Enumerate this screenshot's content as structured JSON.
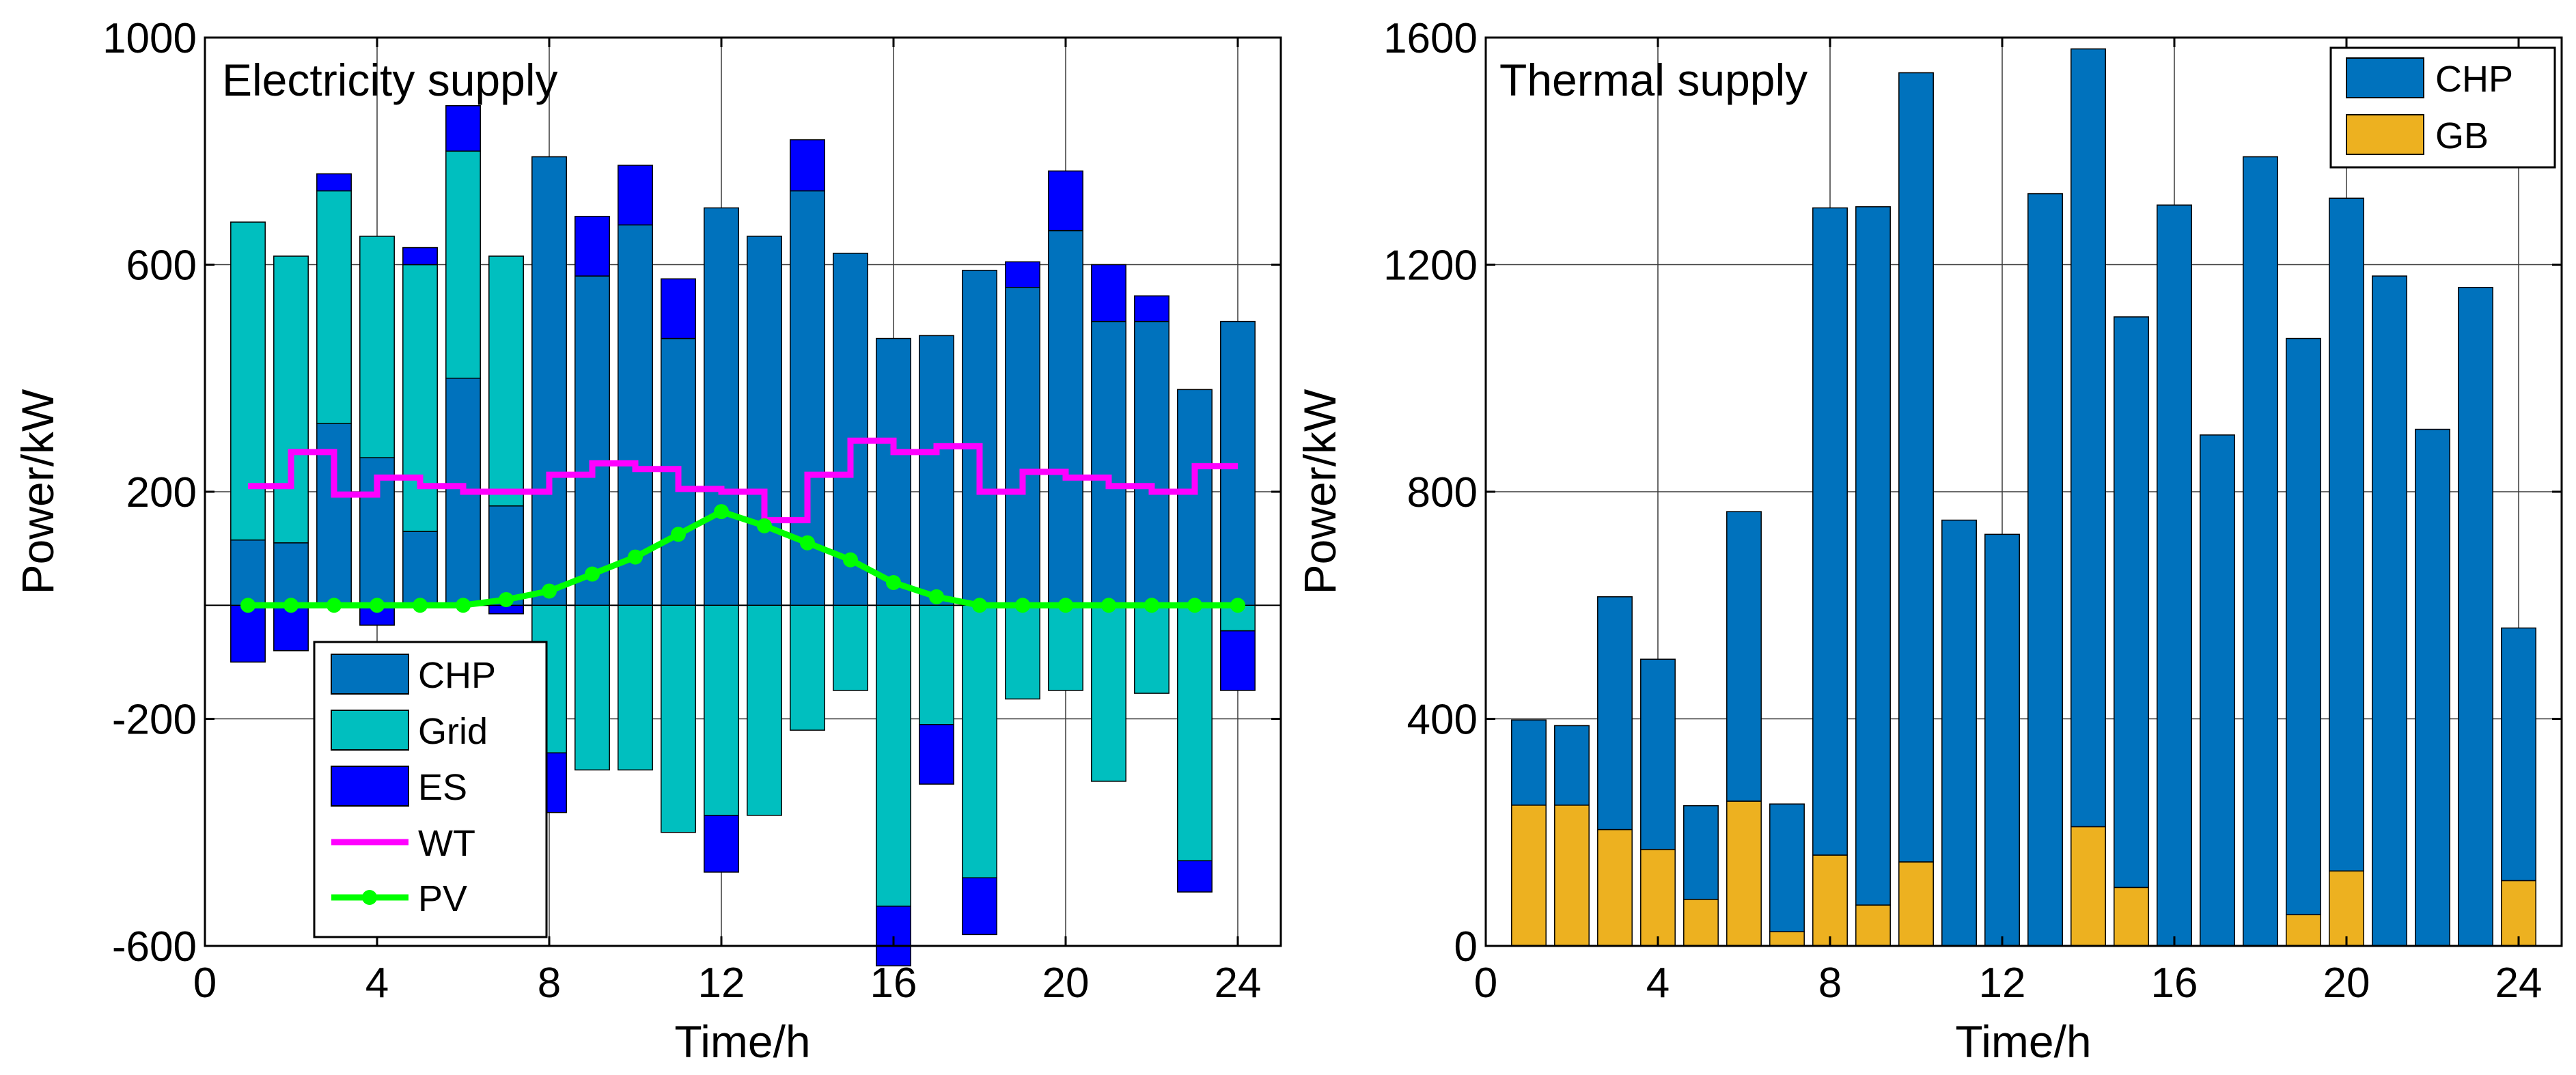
{
  "chart_data": [
    {
      "type": "bar",
      "title": "Electricity supply",
      "xlabel": "Time/h",
      "ylabel": "Power/kW",
      "xlim": [
        0,
        25
      ],
      "ylim": [
        -600,
        1000
      ],
      "x_ticks": [
        0,
        4,
        8,
        12,
        16,
        20,
        24
      ],
      "y_ticks": [
        -600,
        -200,
        200,
        600,
        1000
      ],
      "grid": true,
      "legend_position": "bottom-left",
      "x": [
        1,
        2,
        3,
        4,
        5,
        6,
        7,
        8,
        9,
        10,
        11,
        12,
        13,
        14,
        15,
        16,
        17,
        18,
        19,
        20,
        21,
        22,
        23,
        24
      ],
      "series": [
        {
          "name": "CHP",
          "kind": "bar",
          "color": "#0072BD",
          "values": [
            115,
            110,
            320,
            260,
            130,
            400,
            175,
            790,
            580,
            670,
            470,
            700,
            650,
            730,
            620,
            470,
            475,
            590,
            560,
            660,
            500,
            500,
            380,
            500
          ]
        },
        {
          "name": "Grid",
          "kind": "bar",
          "color": "#00BFBF",
          "values": [
            560,
            505,
            410,
            390,
            470,
            400,
            440,
            -260,
            -290,
            -290,
            -400,
            -370,
            -370,
            -220,
            -150,
            -530,
            -210,
            -480,
            -165,
            -150,
            -310,
            -155,
            -450,
            -45
          ]
        },
        {
          "name": "ES",
          "kind": "bar",
          "color": "#0000FF",
          "values": [
            -100,
            -80,
            30,
            -35,
            30,
            80,
            -15,
            -105,
            105,
            105,
            105,
            -100,
            0,
            90,
            0,
            -105,
            -105,
            -100,
            45,
            105,
            100,
            45,
            -55,
            -105
          ]
        },
        {
          "name": "WT",
          "kind": "step",
          "color": "#FF00FF",
          "values": [
            210,
            270,
            195,
            225,
            210,
            200,
            200,
            230,
            250,
            240,
            205,
            200,
            150,
            230,
            290,
            270,
            280,
            200,
            235,
            225,
            210,
            200,
            245,
            245
          ]
        },
        {
          "name": "PV",
          "kind": "line",
          "color": "#00FF00",
          "values": [
            0,
            0,
            0,
            0,
            0,
            0,
            10,
            25,
            55,
            85,
            125,
            165,
            140,
            110,
            80,
            40,
            15,
            0,
            0,
            0,
            0,
            0,
            0,
            0
          ]
        }
      ]
    },
    {
      "type": "bar",
      "title": "Thermal supply",
      "xlabel": "Time/h",
      "ylabel": "Power/kW",
      "xlim": [
        0,
        25
      ],
      "ylim": [
        0,
        1600
      ],
      "x_ticks": [
        0,
        4,
        8,
        12,
        16,
        20,
        24
      ],
      "y_ticks": [
        0,
        400,
        800,
        1200,
        1600
      ],
      "grid": true,
      "legend_position": "top-right",
      "stacked": true,
      "x": [
        1,
        2,
        3,
        4,
        5,
        6,
        7,
        8,
        9,
        10,
        11,
        12,
        13,
        14,
        15,
        16,
        17,
        18,
        19,
        20,
        21,
        22,
        23,
        24
      ],
      "series": [
        {
          "name": "CHP",
          "color": "#0072BD",
          "values": [
            150,
            140,
            410,
            335,
            165,
            510,
            225,
            1140,
            1230,
            1390,
            750,
            725,
            1325,
            1370,
            1005,
            1305,
            900,
            1390,
            1015,
            1185,
            1180,
            910,
            1160,
            445
          ]
        },
        {
          "name": "GB",
          "color": "#EDB120",
          "values": [
            248,
            248,
            205,
            170,
            82,
            255,
            25,
            160,
            72,
            148,
            0,
            0,
            0,
            210,
            103,
            0,
            0,
            0,
            55,
            132,
            0,
            0,
            0,
            115
          ]
        }
      ]
    }
  ]
}
